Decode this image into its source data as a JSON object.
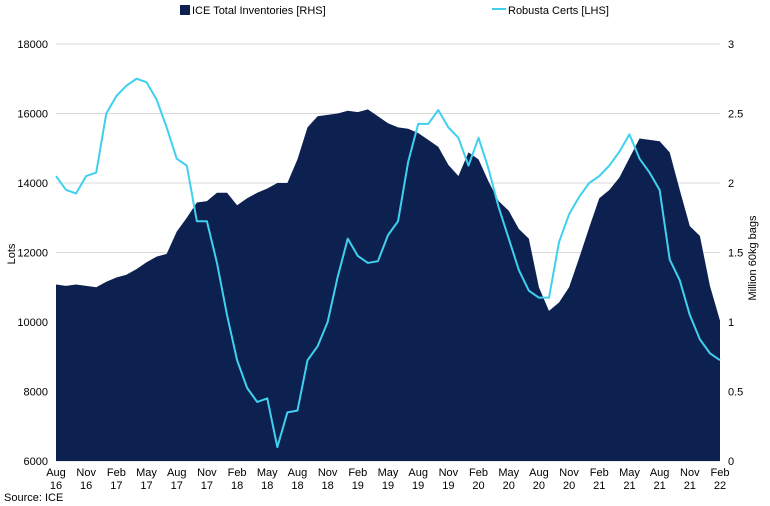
{
  "chart_data": {
    "type": "area+line",
    "source": "Source: ICE",
    "legend": {
      "placement": "top",
      "items": [
        {
          "name": "ICE Total Inventories [RHS]",
          "color": "#0d2151",
          "kind": "area"
        },
        {
          "name": "Robusta Certs [LHS]",
          "color": "#3fd0ef",
          "kind": "line"
        }
      ]
    },
    "left_axis": {
      "label": "Lots",
      "min": 6000,
      "max": 18000,
      "ticks": [
        6000,
        8000,
        10000,
        12000,
        14000,
        16000,
        18000
      ],
      "tick_labels": [
        "6000",
        "8000",
        "10000",
        "12000",
        "14000",
        "16000",
        "18000"
      ]
    },
    "right_axis": {
      "label": "Million 60kg bags",
      "min": 0,
      "max": 3,
      "ticks": [
        0,
        0.5,
        1,
        1.5,
        2,
        2.5,
        3
      ],
      "tick_labels": [
        "0",
        "0.5",
        "1",
        "1.5",
        "2",
        "2.5",
        "3"
      ]
    },
    "x_axis": {
      "start": "Aug 16",
      "end": "Feb 22",
      "tick_labels": [
        [
          "Aug",
          "16"
        ],
        [
          "Nov",
          "16"
        ],
        [
          "Feb",
          "17"
        ],
        [
          "May",
          "17"
        ],
        [
          "Aug",
          "17"
        ],
        [
          "Nov",
          "17"
        ],
        [
          "Feb",
          "18"
        ],
        [
          "May",
          "18"
        ],
        [
          "Aug",
          "18"
        ],
        [
          "Nov",
          "18"
        ],
        [
          "Feb",
          "19"
        ],
        [
          "May",
          "19"
        ],
        [
          "Aug",
          "19"
        ],
        [
          "Nov",
          "19"
        ],
        [
          "Feb",
          "20"
        ],
        [
          "May",
          "20"
        ],
        [
          "Aug",
          "20"
        ],
        [
          "Nov",
          "20"
        ],
        [
          "Feb",
          "21"
        ],
        [
          "May",
          "21"
        ],
        [
          "Aug",
          "21"
        ],
        [
          "Nov",
          "21"
        ],
        [
          "Feb",
          "22"
        ]
      ]
    },
    "grid": "horizontal",
    "series": [
      {
        "name": "ICE Total Inventories [RHS]",
        "axis": "right",
        "type": "area",
        "color": "#0d2151",
        "values": [
          1.27,
          1.26,
          1.27,
          1.26,
          1.25,
          1.29,
          1.32,
          1.34,
          1.38,
          1.43,
          1.47,
          1.49,
          1.65,
          1.75,
          1.86,
          1.87,
          1.93,
          1.93,
          1.84,
          1.89,
          1.93,
          1.96,
          2.0,
          2.0,
          2.17,
          2.4,
          2.48,
          2.49,
          2.5,
          2.52,
          2.51,
          2.53,
          2.48,
          2.43,
          2.4,
          2.39,
          2.36,
          2.31,
          2.26,
          2.13,
          2.05,
          2.22,
          2.17,
          2.01,
          1.87,
          1.8,
          1.67,
          1.6,
          1.25,
          1.08,
          1.14,
          1.25,
          1.46,
          1.68,
          1.89,
          1.95,
          2.04,
          2.18,
          2.32,
          2.31,
          2.3,
          2.22,
          1.95,
          1.69,
          1.62,
          1.26,
          1.01
        ]
      },
      {
        "name": "Robusta Certs [LHS]",
        "axis": "left",
        "type": "line",
        "color": "#3fd0ef",
        "values": [
          14200,
          13800,
          13700,
          14200,
          14300,
          16000,
          16500,
          16800,
          17000,
          16900,
          16400,
          15600,
          14700,
          14500,
          12900,
          12900,
          11700,
          10200,
          8900,
          8100,
          7700,
          7800,
          6400,
          7400,
          7450,
          8900,
          9300,
          10000,
          11300,
          12400,
          11900,
          11700,
          11750,
          12500,
          12900,
          14600,
          15700,
          15700,
          16100,
          15600,
          15300,
          14500,
          15300,
          14400,
          13300,
          12400,
          11500,
          10900,
          10700,
          10700,
          12300,
          13100,
          13600,
          14000,
          14200,
          14500,
          14900,
          15400,
          14700,
          14300,
          13800,
          11800,
          11200,
          10200,
          9500,
          9100,
          8900
        ]
      }
    ]
  }
}
